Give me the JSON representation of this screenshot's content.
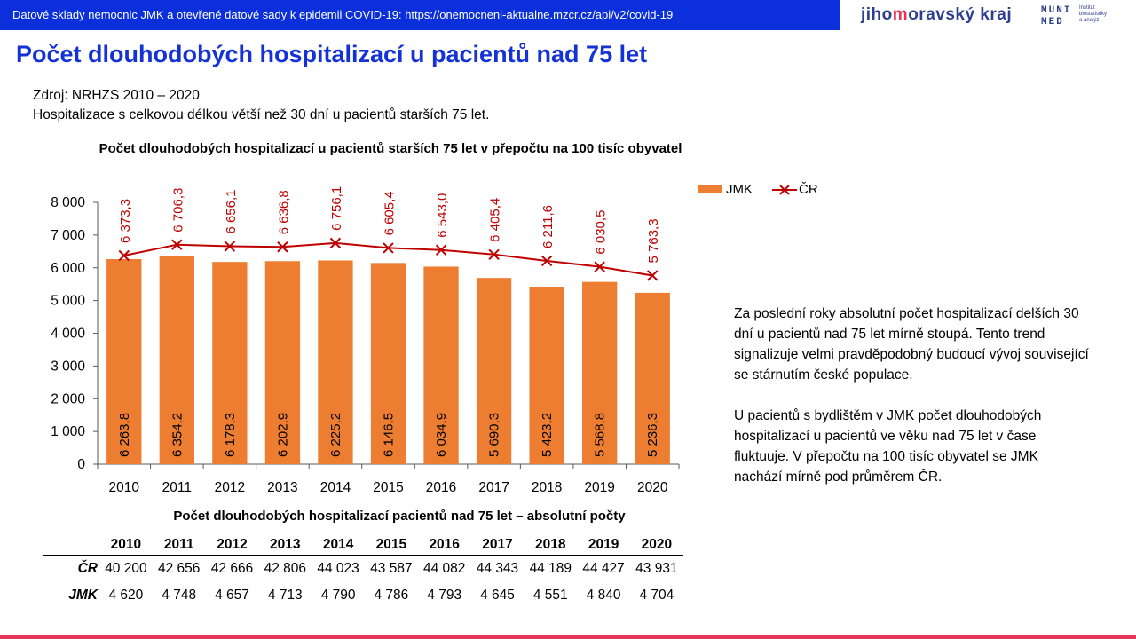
{
  "header": {
    "banner_text": "Datové sklady nemocnic JMK a otevřené datové sady k epidemii COVID-19: https://onemocneni-aktualne.mzcr.cz/api/v2/covid-19",
    "logo_jmk_pre": "jiho",
    "logo_jmk_m": "m",
    "logo_jmk_post": "oravský kraj",
    "logo_muni_line1": "MUNI",
    "logo_muni_line2": "MED",
    "logo_inst_line1": "Institut",
    "logo_inst_line2": "biostatistiky",
    "logo_inst_line3": "a analýz"
  },
  "page_title": "Počet dlouhodobých hospitalizací u pacientů nad 75 let",
  "source": {
    "line1": "Zdroj: NRHZS 2010 – 2020",
    "line2": "Hospitalizace s celkovou délkou větší než 30 dní u pacientů starších 75 let."
  },
  "description": {
    "p1": "Za poslední roky absolutní počet hospitalizací delších 30 dní u pacientů nad 75 let mírně stoupá. Tento trend signalizuje velmi pravděpodobný budoucí vývoj související se stárnutím české populace.",
    "p2": "U pacientů s bydlištěm v JMK počet dlouhodobých hospitalizací u pacientů ve věku nad 75 let v čase fluktuuje. V přepočtu na 100 tisíc obyvatel se JMK nachází mírně pod průměrem ČR."
  },
  "chart_data": {
    "type": "bar",
    "title": "Počet dlouhodobých hospitalizací u pacientů starších 75 let v přepočtu na 100 tisíc obyvatel",
    "categories": [
      "2010",
      "2011",
      "2012",
      "2013",
      "2014",
      "2015",
      "2016",
      "2017",
      "2018",
      "2019",
      "2020"
    ],
    "series": [
      {
        "name": "JMK",
        "type": "bar",
        "color": "#ed7d31",
        "values": [
          6263.8,
          6354.2,
          6178.3,
          6202.9,
          6225.2,
          6146.5,
          6034.9,
          5690.3,
          5423.2,
          5568.8,
          5236.3
        ],
        "labels": [
          "6 263,8",
          "6 354,2",
          "6 178,3",
          "6 202,9",
          "6 225,2",
          "6 146,5",
          "6 034,9",
          "5 690,3",
          "5 423,2",
          "5 568,8",
          "5 236,3"
        ]
      },
      {
        "name": "ČR",
        "type": "line",
        "color": "#c00000",
        "values": [
          6373.3,
          6706.3,
          6656.1,
          6636.8,
          6756.1,
          6605.4,
          6543.0,
          6405.4,
          6211.6,
          6030.5,
          5763.3
        ],
        "labels": [
          "6 373,3",
          "6 706,3",
          "6 656,1",
          "6 636,8",
          "6 756,1",
          "6 605,4",
          "6 543,0",
          "6 405,4",
          "6 211,6",
          "6 030,5",
          "5 763,3"
        ]
      }
    ],
    "ylim": [
      0,
      8000
    ],
    "yticks": [
      0,
      1000,
      2000,
      3000,
      4000,
      5000,
      6000,
      7000,
      8000
    ],
    "ytick_labels": [
      "0",
      "1 000",
      "2 000",
      "3 000",
      "4 000",
      "5 000",
      "6 000",
      "7 000",
      "8 000"
    ],
    "grid": false,
    "legend_position": "top-right"
  },
  "abs_table": {
    "title": "Počet dlouhodobých hospitalizací pacientů nad 75 let – absolutní počty",
    "years": [
      "2010",
      "2011",
      "2012",
      "2013",
      "2014",
      "2015",
      "2016",
      "2017",
      "2018",
      "2019",
      "2020"
    ],
    "rows": [
      {
        "label": "ČR",
        "values": [
          "40 200",
          "42 656",
          "42 666",
          "42 806",
          "44 023",
          "43 587",
          "44 082",
          "44 343",
          "44 189",
          "44 427",
          "43 931"
        ]
      },
      {
        "label": "JMK",
        "values": [
          "4 620",
          "4 748",
          "4 657",
          "4 713",
          "4 790",
          "4 786",
          "4 793",
          "4 645",
          "4 551",
          "4 840",
          "4 704"
        ]
      }
    ]
  }
}
